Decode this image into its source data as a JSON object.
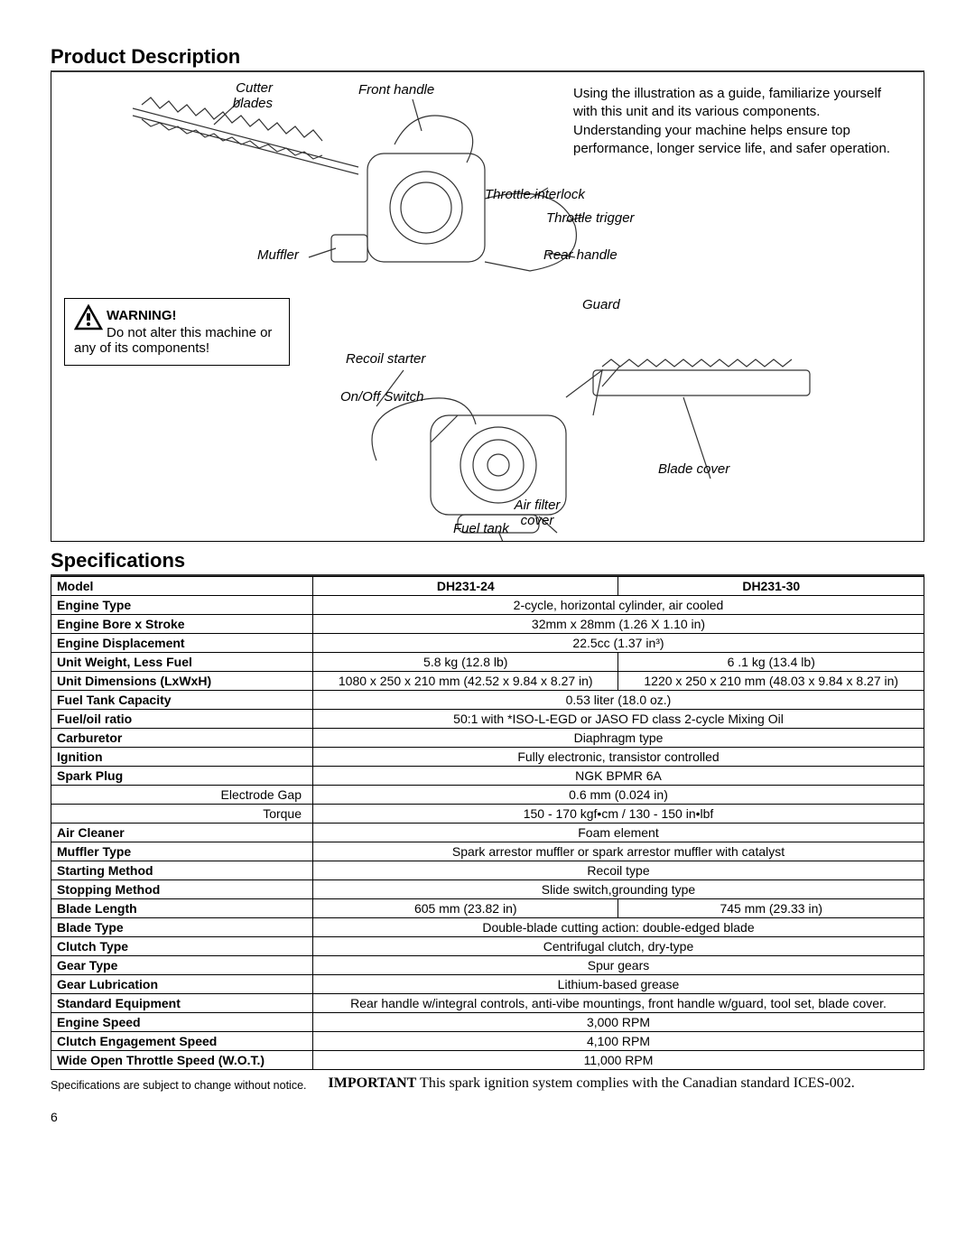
{
  "sections": {
    "product_description": "Product Description",
    "specifications": "Specifications"
  },
  "diagram": {
    "intro": "Using the illustration as a guide, familiarize yourself with this unit and its various components. Understanding your machine helps ensure top performance, longer service life, and safer operation.",
    "labels": {
      "cutter_blades": "Cutter blades",
      "front_handle": "Front handle",
      "throttle_interlock": "Throttle interlock",
      "throttle_trigger": "Throttle trigger",
      "muffler": "Muffler",
      "rear_handle": "Rear handle",
      "guard": "Guard",
      "recoil_starter": "Recoil starter",
      "on_off_switch": "On/Off Switch",
      "blade_cover": "Blade cover",
      "air_filter_cover": "Air filter cover",
      "fuel_tank": "Fuel tank"
    },
    "warning": {
      "heading": "WARNING!",
      "body": "Do not alter this machine or any of its components!"
    }
  },
  "specs": {
    "headers": {
      "model": "Model",
      "col1": "DH231-24",
      "col2": "DH231-30"
    },
    "rows": [
      {
        "label": "Engine Type",
        "span": "2-cycle, horizontal cylinder, air cooled"
      },
      {
        "label": "Engine Bore x Stroke",
        "span": "32mm x 28mm (1.26 X 1.10 in)"
      },
      {
        "label": "Engine Displacement",
        "span": "22.5cc (1.37 in³)"
      },
      {
        "label": "Unit Weight, Less Fuel",
        "c1": "5.8 kg (12.8 lb)",
        "c2": "6 .1 kg (13.4 lb)"
      },
      {
        "label": "Unit Dimensions (LxWxH)",
        "c1": "1080 x 250 x 210 mm (42.52 x 9.84 x 8.27 in)",
        "c2": "1220 x 250 x 210 mm (48.03 x 9.84 x 8.27 in)"
      },
      {
        "label": "Fuel Tank Capacity",
        "span": "0.53 liter (18.0 oz.)"
      },
      {
        "label": "Fuel/oil ratio",
        "span": "50:1 with *ISO-L-EGD or JASO FD class 2-cycle Mixing Oil"
      },
      {
        "label": "Carburetor",
        "span": "Diaphragm type"
      },
      {
        "label": "Ignition",
        "span": "Fully electronic, transistor controlled"
      },
      {
        "label": "Spark Plug",
        "span": "NGK BPMR 6A"
      },
      {
        "label": "Electrode Gap",
        "sub": true,
        "span": "0.6 mm (0.024 in)"
      },
      {
        "label": "Torque",
        "sub": true,
        "span": "150 - 170 kgf•cm / 130 - 150 in•lbf"
      },
      {
        "label": "Air Cleaner",
        "span": "Foam element"
      },
      {
        "label": "Muffler Type",
        "span": "Spark arrestor muffler or spark arrestor muffler with catalyst"
      },
      {
        "label": "Starting Method",
        "span": "Recoil type"
      },
      {
        "label": "Stopping Method",
        "span": "Slide switch,grounding type"
      },
      {
        "label": "Blade Length",
        "c1": "605 mm (23.82 in)",
        "c2": "745 mm (29.33 in)"
      },
      {
        "label": "Blade Type",
        "span": "Double-blade cutting action: double-edged blade"
      },
      {
        "label": "Clutch Type",
        "span": "Centrifugal clutch, dry-type"
      },
      {
        "label": "Gear Type",
        "span": "Spur gears"
      },
      {
        "label": "Gear Lubrication",
        "span": "Lithium-based grease"
      },
      {
        "label": "Standard Equipment",
        "span": "Rear handle w/integral controls, anti-vibe mountings, front handle w/guard, tool set, blade cover."
      },
      {
        "label": "Engine Speed",
        "span": "3,000 RPM"
      },
      {
        "label": "Clutch Engagement Speed",
        "span": "4,100 RPM"
      },
      {
        "label": "Wide Open Throttle Speed (W.O.T.)",
        "span": "11,000 RPM"
      }
    ]
  },
  "footer": {
    "change_notice": "Specifications are subject to change without notice.",
    "important_label": "IMPORTANT",
    "important_text": " This spark ignition system complies with the Canadian standard ICES-002."
  },
  "page_number": "6",
  "colors": {
    "border": "#000000",
    "text": "#000000",
    "lineart": "#333333",
    "bg": "#ffffff"
  }
}
